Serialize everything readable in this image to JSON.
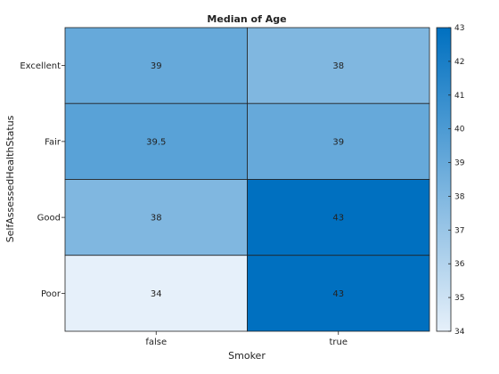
{
  "chart_data": {
    "type": "heatmap",
    "title": "Median of Age",
    "xlabel": "Smoker",
    "ylabel": "SelfAssessedHealthStatus",
    "x_categories": [
      "false",
      "true"
    ],
    "y_categories": [
      "Excellent",
      "Fair",
      "Good",
      "Poor"
    ],
    "values": [
      [
        39,
        38
      ],
      [
        39.5,
        39
      ],
      [
        38,
        43
      ],
      [
        34,
        43
      ]
    ],
    "value_labels": [
      [
        "39",
        "38"
      ],
      [
        "39.5",
        "39"
      ],
      [
        "38",
        "43"
      ],
      [
        "34",
        "43"
      ]
    ],
    "colorbar": {
      "min": 34,
      "max": 43,
      "ticks": [
        "34",
        "35",
        "36",
        "37",
        "38",
        "39",
        "40",
        "41",
        "42",
        "43"
      ]
    },
    "colormap": {
      "low": "#e6f0fa",
      "high": "#0070c0"
    },
    "grid": false,
    "colorbar_placement": "right"
  }
}
